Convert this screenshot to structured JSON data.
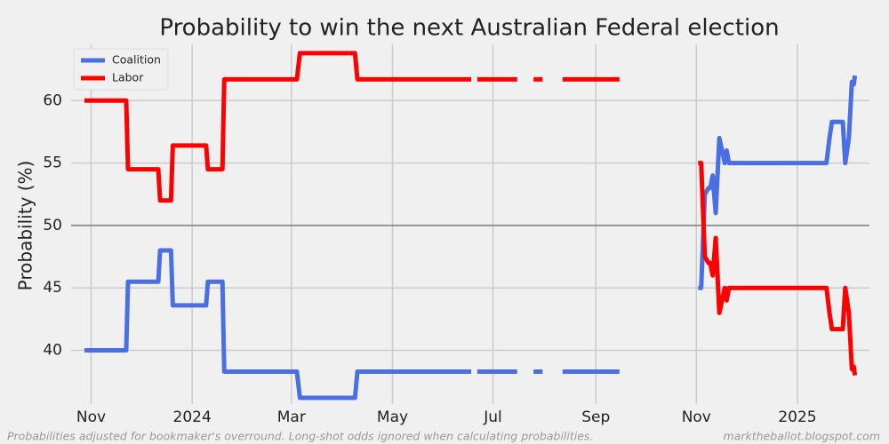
{
  "chart_data": {
    "type": "line",
    "title": "Probability to win the next Australian Federal election",
    "y_label": "Probability (%)",
    "footnote_left": "Probabilities adjusted for bookmaker's overround. Long-shot odds ignored when calculating probabilities.",
    "footnote_right": "marktheballot.blogspot.com",
    "x": [
      2023.822,
      2023.891,
      2023.894,
      2023.944,
      2023.947,
      2023.965,
      2023.968,
      2024.023,
      2024.026,
      2024.05,
      2024.053,
      2024.173,
      2024.178,
      2024.269,
      2024.273,
      2024.461,
      2024.466,
      2024.471,
      2024.537,
      2024.551,
      2024.564,
      2024.579,
      2024.593,
      2024.612,
      2024.706,
      2024.769,
      2024.836,
      2024.841,
      2024.847,
      2024.853,
      2024.856,
      2024.86,
      2024.865,
      2024.871,
      2024.88,
      2024.883,
      2024.887,
      2025.048,
      2025.053,
      2025.057,
      2025.075,
      2025.079,
      2025.085,
      2025.09,
      2025.093,
      2025.095
    ],
    "series": [
      {
        "name": "Coalition",
        "color": "#4a6fe3",
        "values": [
          40,
          40,
          45.5,
          45.5,
          48,
          48,
          43.6,
          43.6,
          45.5,
          45.5,
          38.3,
          38.3,
          36.2,
          36.2,
          38.3,
          38.3,
          null,
          38.3,
          38.3,
          null,
          38.3,
          38.3,
          null,
          38.3,
          38.3,
          null,
          45,
          45,
          52.5,
          53,
          53,
          54,
          51,
          57,
          55,
          56,
          55,
          55,
          57,
          58.3,
          58.3,
          55,
          57,
          61.5,
          61.3,
          62
        ]
      },
      {
        "name": "Labor",
        "color": "#ff0000",
        "values": [
          60,
          60,
          54.5,
          54.5,
          52,
          52,
          56.4,
          56.4,
          54.5,
          54.5,
          61.7,
          61.7,
          63.8,
          63.8,
          61.7,
          61.7,
          null,
          61.7,
          61.7,
          null,
          61.7,
          61.7,
          null,
          61.7,
          61.7,
          null,
          55,
          55,
          47.5,
          47,
          47,
          46,
          49,
          43,
          45,
          44,
          45,
          45,
          43,
          41.7,
          41.7,
          45,
          43,
          38.5,
          38.7,
          38
        ]
      }
    ],
    "xlim": [
      2023.8,
      2025.119
    ],
    "xticks": [
      {
        "value": 2023.833,
        "label": "Nov"
      },
      {
        "value": 2024,
        "label": "2024"
      },
      {
        "value": 2024.164,
        "label": "Mar"
      },
      {
        "value": 2024.331,
        "label": "May"
      },
      {
        "value": 2024.497,
        "label": "Jul"
      },
      {
        "value": 2024.667,
        "label": "Sep"
      },
      {
        "value": 2024.833,
        "label": "Nov"
      },
      {
        "value": 2025,
        "label": "2025"
      }
    ],
    "ylim": [
      35.7,
      64.5
    ],
    "yticks": [
      40,
      45,
      50,
      55,
      60
    ],
    "reference_line": 50,
    "grid": true,
    "legend": "upper-left"
  }
}
